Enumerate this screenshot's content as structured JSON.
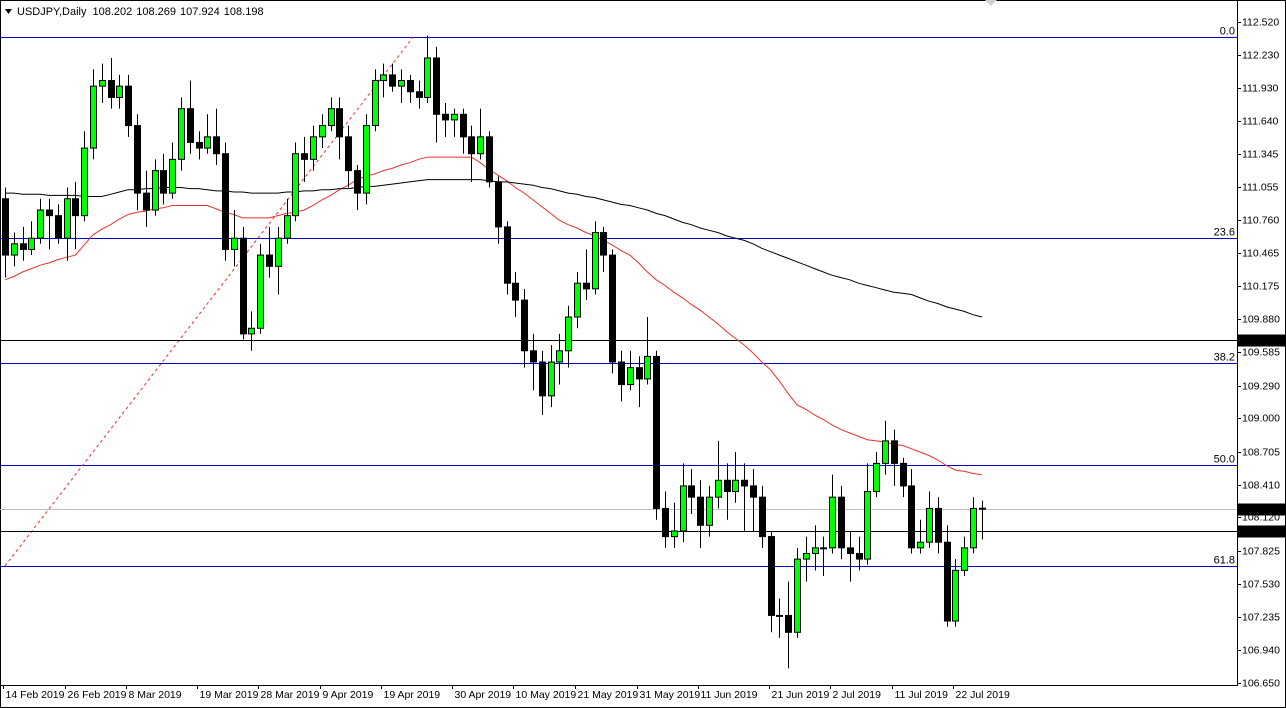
{
  "chart_data": {
    "type": "candlestick",
    "symbol": "USDJPY,Daily",
    "categories": [
      "14 Feb 2019",
      null,
      null,
      null,
      null,
      null,
      null,
      "26 Feb 2019",
      null,
      null,
      null,
      null,
      null,
      null,
      "8 Mar 2019",
      null,
      null,
      null,
      null,
      null,
      null,
      null,
      "19 Mar 2019",
      null,
      null,
      null,
      null,
      null,
      null,
      "28 Mar 2019",
      null,
      null,
      null,
      null,
      null,
      null,
      "9 Apr 2019",
      null,
      null,
      null,
      null,
      null,
      null,
      "19 Apr 2019",
      null,
      null,
      null,
      null,
      null,
      null,
      null,
      "30 Apr 2019",
      null,
      null,
      null,
      null,
      null,
      null,
      "10 May 2019",
      null,
      null,
      null,
      null,
      null,
      null,
      "21 May 2019",
      null,
      null,
      null,
      null,
      null,
      null,
      "31 May 2019",
      null,
      null,
      null,
      null,
      null,
      null,
      "11 Jun 2019",
      null,
      null,
      null,
      null,
      null,
      null,
      null,
      "21 Jun 2019",
      null,
      null,
      null,
      null,
      null,
      null,
      "2 Jul 2019",
      null,
      null,
      null,
      null,
      null,
      null,
      "11 Jul 2019",
      null,
      null,
      null,
      null,
      null,
      null,
      "22 Jul 2019",
      null,
      null,
      null
    ],
    "ohlc": [
      [
        110.95,
        111.05,
        110.25,
        110.45
      ],
      [
        110.45,
        110.65,
        110.35,
        110.55
      ],
      [
        110.55,
        110.7,
        110.4,
        110.5
      ],
      [
        110.5,
        110.75,
        110.45,
        110.6
      ],
      [
        110.6,
        110.95,
        110.55,
        110.85
      ],
      [
        110.85,
        110.95,
        110.5,
        110.8
      ],
      [
        110.8,
        110.9,
        110.55,
        110.6
      ],
      [
        110.6,
        111.05,
        110.4,
        110.95
      ],
      [
        110.95,
        111.1,
        110.5,
        110.8
      ],
      [
        110.8,
        111.55,
        110.75,
        111.4
      ],
      [
        111.4,
        112.1,
        111.3,
        111.95
      ],
      [
        111.95,
        112.15,
        111.8,
        112.0
      ],
      [
        112.0,
        112.2,
        111.75,
        111.85
      ],
      [
        111.85,
        112.05,
        111.75,
        111.95
      ],
      [
        111.95,
        112.05,
        111.5,
        111.6
      ],
      [
        111.6,
        111.7,
        110.85,
        111.0
      ],
      [
        111.0,
        111.2,
        110.7,
        110.85
      ],
      [
        110.85,
        111.3,
        110.8,
        111.2
      ],
      [
        111.2,
        111.35,
        110.9,
        111.0
      ],
      [
        111.0,
        111.45,
        110.95,
        111.3
      ],
      [
        111.3,
        111.85,
        111.2,
        111.75
      ],
      [
        111.75,
        112.0,
        111.35,
        111.45
      ],
      [
        111.45,
        111.55,
        111.3,
        111.4
      ],
      [
        111.4,
        111.7,
        111.35,
        111.5
      ],
      [
        111.5,
        111.75,
        111.25,
        111.35
      ],
      [
        111.35,
        111.45,
        110.4,
        110.5
      ],
      [
        110.5,
        110.85,
        110.35,
        110.6
      ],
      [
        110.6,
        110.7,
        109.7,
        109.75
      ],
      [
        109.75,
        109.95,
        109.6,
        109.8
      ],
      [
        109.8,
        110.55,
        109.75,
        110.45
      ],
      [
        110.45,
        110.7,
        110.25,
        110.35
      ],
      [
        110.35,
        110.7,
        110.1,
        110.6
      ],
      [
        110.6,
        110.95,
        110.55,
        110.8
      ],
      [
        110.8,
        111.45,
        110.75,
        111.35
      ],
      [
        111.35,
        111.5,
        111.1,
        111.3
      ],
      [
        111.3,
        111.6,
        111.2,
        111.5
      ],
      [
        111.5,
        111.7,
        111.4,
        111.6
      ],
      [
        111.6,
        111.85,
        111.55,
        111.75
      ],
      [
        111.75,
        111.85,
        111.3,
        111.5
      ],
      [
        111.5,
        111.6,
        111.05,
        111.2
      ],
      [
        111.2,
        111.25,
        110.85,
        111.0
      ],
      [
        111.0,
        111.7,
        110.9,
        111.6
      ],
      [
        111.6,
        112.1,
        111.55,
        112.0
      ],
      [
        112.0,
        112.15,
        111.85,
        112.05
      ],
      [
        112.05,
        112.15,
        111.9,
        111.95
      ],
      [
        111.95,
        112.1,
        111.8,
        112.0
      ],
      [
        112.0,
        112.05,
        111.8,
        111.9
      ],
      [
        111.9,
        112.0,
        111.75,
        111.85
      ],
      [
        111.85,
        112.4,
        111.8,
        112.2
      ],
      [
        112.2,
        112.3,
        111.45,
        111.7
      ],
      [
        111.7,
        111.8,
        111.5,
        111.65
      ],
      [
        111.65,
        111.75,
        111.5,
        111.7
      ],
      [
        111.7,
        111.75,
        111.35,
        111.5
      ],
      [
        111.5,
        111.6,
        111.1,
        111.35
      ],
      [
        111.35,
        111.75,
        111.3,
        111.5
      ],
      [
        111.5,
        111.55,
        111.05,
        111.1
      ],
      [
        111.1,
        111.15,
        110.55,
        110.7
      ],
      [
        110.7,
        110.75,
        110.1,
        110.2
      ],
      [
        110.2,
        110.3,
        109.9,
        110.05
      ],
      [
        110.05,
        110.15,
        109.45,
        109.6
      ],
      [
        109.6,
        109.75,
        109.25,
        109.5
      ],
      [
        109.5,
        109.6,
        109.03,
        109.2
      ],
      [
        109.2,
        109.65,
        109.1,
        109.5
      ],
      [
        109.5,
        109.75,
        109.3,
        109.6
      ],
      [
        109.6,
        110.0,
        109.45,
        109.9
      ],
      [
        109.9,
        110.3,
        109.8,
        110.2
      ],
      [
        110.2,
        110.5,
        110.05,
        110.15
      ],
      [
        110.15,
        110.75,
        110.1,
        110.65
      ],
      [
        110.65,
        110.7,
        110.3,
        110.45
      ],
      [
        110.45,
        110.5,
        109.4,
        109.5
      ],
      [
        109.5,
        109.6,
        109.15,
        109.3
      ],
      [
        109.3,
        109.6,
        109.25,
        109.45
      ],
      [
        109.45,
        109.55,
        109.1,
        109.35
      ],
      [
        109.35,
        109.9,
        109.3,
        109.55
      ],
      [
        109.55,
        109.6,
        108.1,
        108.2
      ],
      [
        108.2,
        108.35,
        107.85,
        107.95
      ],
      [
        107.95,
        108.25,
        107.85,
        108.0
      ],
      [
        108.0,
        108.6,
        107.9,
        108.4
      ],
      [
        108.4,
        108.55,
        108.15,
        108.3
      ],
      [
        108.3,
        108.45,
        107.85,
        108.05
      ],
      [
        108.05,
        108.4,
        107.95,
        108.3
      ],
      [
        108.3,
        108.8,
        108.2,
        108.45
      ],
      [
        108.45,
        108.6,
        108.1,
        108.35
      ],
      [
        108.35,
        108.7,
        108.25,
        108.45
      ],
      [
        108.45,
        108.6,
        108.0,
        108.4
      ],
      [
        108.4,
        108.55,
        108.0,
        108.3
      ],
      [
        108.3,
        108.4,
        107.85,
        107.95
      ],
      [
        107.95,
        108.0,
        107.1,
        107.25
      ],
      [
        107.25,
        107.4,
        107.05,
        107.25
      ],
      [
        107.25,
        107.55,
        106.78,
        107.1
      ],
      [
        107.1,
        107.85,
        107.05,
        107.75
      ],
      [
        107.75,
        107.95,
        107.55,
        107.8
      ],
      [
        107.8,
        108.05,
        107.65,
        107.85
      ],
      [
        107.85,
        107.95,
        107.6,
        107.85
      ],
      [
        107.85,
        108.5,
        107.8,
        108.3
      ],
      [
        108.3,
        108.4,
        107.75,
        107.85
      ],
      [
        107.85,
        108.0,
        107.55,
        107.8
      ],
      [
        107.8,
        107.95,
        107.65,
        107.75
      ],
      [
        107.75,
        108.6,
        107.7,
        108.35
      ],
      [
        108.35,
        108.7,
        108.3,
        108.6
      ],
      [
        108.6,
        108.98,
        108.5,
        108.8
      ],
      [
        108.8,
        108.9,
        108.4,
        108.6
      ],
      [
        108.6,
        108.65,
        108.3,
        108.4
      ],
      [
        108.4,
        108.55,
        107.8,
        107.85
      ],
      [
        107.85,
        108.1,
        107.8,
        107.9
      ],
      [
        107.9,
        108.35,
        107.85,
        108.2
      ],
      [
        108.2,
        108.3,
        107.8,
        107.9
      ],
      [
        107.9,
        108.05,
        107.15,
        107.2
      ],
      [
        107.2,
        107.75,
        107.15,
        107.65
      ],
      [
        107.65,
        107.95,
        107.6,
        107.85
      ],
      [
        107.85,
        108.3,
        107.8,
        108.2
      ],
      [
        108.202,
        108.269,
        107.924,
        108.198
      ]
    ],
    "bull_color": "#00ff00",
    "bear_color": "#000000",
    "moving_averages": [
      {
        "color": "#e8332d",
        "values": [
          110.23,
          110.26,
          110.3,
          110.33,
          110.36,
          110.38,
          110.41,
          110.43,
          110.45,
          110.54,
          110.63,
          110.68,
          110.72,
          110.77,
          110.81,
          110.83,
          110.84,
          110.86,
          110.87,
          110.89,
          110.89,
          110.89,
          110.89,
          110.89,
          110.86,
          110.83,
          110.81,
          110.78,
          110.78,
          110.78,
          110.78,
          110.8,
          110.82,
          110.83,
          110.85,
          110.89,
          110.94,
          110.98,
          111.03,
          111.07,
          111.12,
          111.15,
          111.17,
          111.2,
          111.22,
          111.25,
          111.27,
          111.3,
          111.32,
          111.32,
          111.32,
          111.32,
          111.32,
          111.32,
          111.27,
          111.21,
          111.16,
          111.11,
          111.05,
          111.0,
          110.94,
          110.88,
          110.82,
          110.76,
          110.72,
          110.69,
          110.65,
          110.62,
          110.58,
          110.54,
          110.49,
          110.45,
          110.38,
          110.3,
          110.23,
          110.18,
          110.12,
          110.07,
          110.01,
          109.96,
          109.9,
          109.84,
          109.77,
          109.71,
          109.65,
          109.58,
          109.5,
          109.43,
          109.33,
          109.22,
          109.12,
          109.08,
          109.03,
          108.99,
          108.94,
          108.9,
          108.87,
          108.84,
          108.81,
          108.8,
          108.79,
          108.77,
          108.76,
          108.73,
          108.7,
          108.67,
          108.63,
          108.58,
          108.54,
          108.53,
          108.51,
          108.5
        ]
      },
      {
        "color": "#000000",
        "values": [
          111.0,
          111.0,
          110.99,
          110.99,
          110.99,
          110.98,
          110.98,
          110.98,
          110.98,
          110.97,
          110.97,
          110.97,
          110.99,
          111.01,
          111.03,
          111.03,
          111.04,
          111.04,
          111.05,
          111.05,
          111.05,
          111.04,
          111.04,
          111.03,
          111.02,
          111.02,
          111.01,
          111.01,
          111.0,
          111.0,
          111.0,
          111.0,
          111.01,
          111.01,
          111.02,
          111.02,
          111.03,
          111.03,
          111.04,
          111.04,
          111.05,
          111.06,
          111.06,
          111.07,
          111.08,
          111.09,
          111.1,
          111.11,
          111.12,
          111.12,
          111.12,
          111.12,
          111.12,
          111.12,
          111.12,
          111.11,
          111.1,
          111.1,
          111.09,
          111.08,
          111.07,
          111.05,
          111.04,
          111.02,
          111.0,
          110.99,
          110.97,
          110.96,
          110.94,
          110.92,
          110.9,
          110.89,
          110.87,
          110.85,
          110.82,
          110.8,
          110.77,
          110.74,
          110.72,
          110.69,
          110.67,
          110.65,
          110.62,
          110.6,
          110.58,
          110.55,
          110.51,
          110.48,
          110.45,
          110.42,
          110.39,
          110.36,
          110.33,
          110.3,
          110.27,
          110.25,
          110.23,
          110.2,
          110.18,
          110.16,
          110.14,
          110.12,
          110.11,
          110.1,
          110.07,
          110.04,
          110.02,
          109.99,
          109.97,
          109.95,
          109.92,
          109.9
        ]
      }
    ],
    "fibonacci": {
      "color": "#0000c8",
      "levels": [
        {
          "label": "0.0",
          "price": 112.387
        },
        {
          "label": "23.6",
          "price": 110.602
        },
        {
          "label": "38.2",
          "price": 109.492
        },
        {
          "label": "50.0",
          "price": 108.586
        },
        {
          "label": "61.8",
          "price": 107.689
        }
      ]
    },
    "price_lines": [
      {
        "value": 109.7,
        "label": "109.700",
        "color": "#000000"
      },
      {
        "value": 108.0,
        "label": "108.000",
        "color": "#000000"
      }
    ],
    "bid_color": "#c0c0c0",
    "ylim": [
      106.632,
      112.644
    ],
    "yticks": [
      {
        "value": 112.52,
        "label": "112.520"
      },
      {
        "value": 112.23,
        "label": "112.230"
      },
      {
        "value": 111.93,
        "label": "111.930"
      },
      {
        "value": 111.64,
        "label": "111.640"
      },
      111.345,
      {
        "value": 111.055,
        "label": "111.055"
      },
      {
        "value": 110.76,
        "label": "110.760"
      },
      110.465,
      {
        "value": 110.175,
        "label": "110.175"
      },
      {
        "value": 109.88,
        "label": "109.880"
      },
      109.585,
      {
        "value": 109.29,
        "label": "109.290"
      },
      {
        "value": 109.0,
        "label": "109.000"
      },
      108.705,
      {
        "value": 108.41,
        "label": "108.410"
      },
      {
        "value": 108.12,
        "label": "108.120"
      },
      107.825,
      {
        "value": 107.53,
        "label": "107.530"
      },
      107.235,
      {
        "value": 106.94,
        "label": "106.940"
      },
      {
        "value": 106.65,
        "label": "106.650"
      }
    ]
  }
}
